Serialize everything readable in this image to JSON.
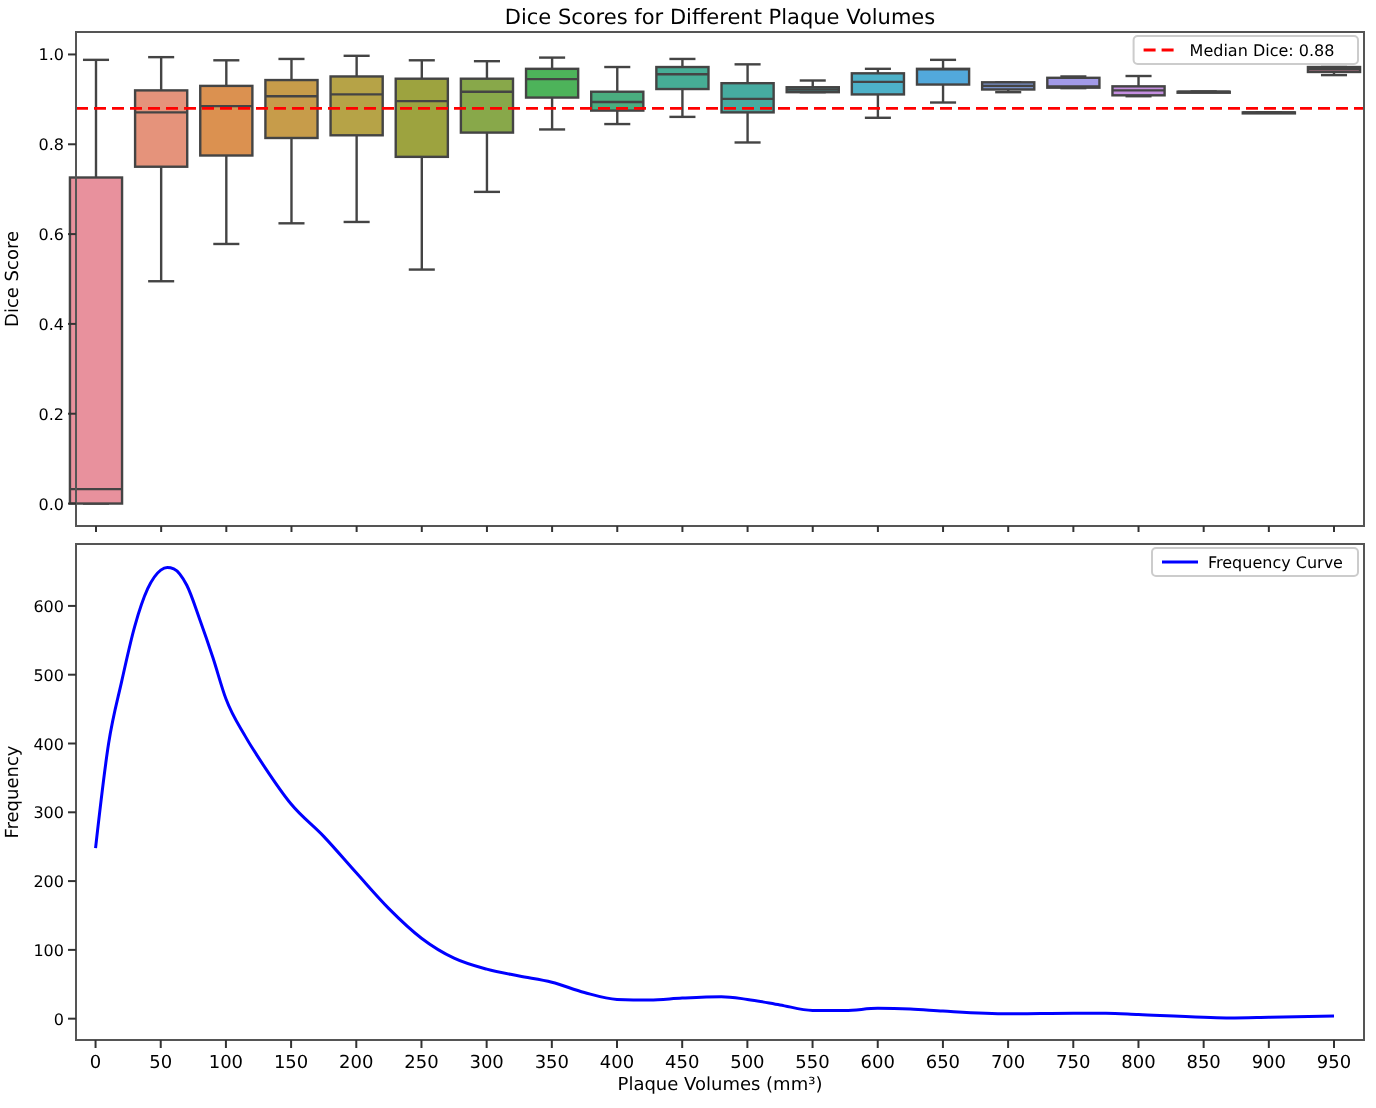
{
  "chart_data": [
    {
      "type": "box",
      "title": "Dice Scores for Different Plaque Volumes",
      "ylabel": "Dice Score",
      "categories": [
        "0",
        "50",
        "100",
        "150",
        "200",
        "250",
        "300",
        "350",
        "400",
        "450",
        "500",
        "550",
        "600",
        "650",
        "700",
        "750",
        "800",
        "850",
        "900",
        "950"
      ],
      "ylim": [
        -0.05,
        1.05
      ],
      "yticks": [
        {
          "value": 0,
          "label": "0.0"
        },
        {
          "value": 0.2,
          "label": "0.2"
        },
        {
          "value": 0.4,
          "label": "0.4"
        },
        {
          "value": 0.6,
          "label": "0.6"
        },
        {
          "value": 0.8,
          "label": "0.8"
        },
        {
          "value": 1,
          "label": "1.0"
        }
      ],
      "tick_labels": "y",
      "grid": false,
      "legend": "top right",
      "colors": [
        "#e8919d",
        "#e5937b",
        "#db9150",
        "#c79c4a",
        "#b6a347",
        "#9da33f",
        "#88a84a",
        "#4db35a",
        "#4aad7f",
        "#46ad95",
        "#46aba0",
        "#47a6a8",
        "#4db1c8",
        "#52a9dc",
        "#7890c8",
        "#a29ae8",
        "#c48ee0",
        "#d38bd0",
        "#e28fbd",
        "#e890aa"
      ],
      "boxes": [
        {
          "low": 0,
          "q1": 0,
          "median": 0.032,
          "q3": 0.726,
          "high": 0.988
        },
        {
          "low": 0.495,
          "q1": 0.75,
          "median": 0.871,
          "q3": 0.92,
          "high": 0.994
        },
        {
          "low": 0.578,
          "q1": 0.775,
          "median": 0.885,
          "q3": 0.93,
          "high": 0.987
        },
        {
          "low": 0.624,
          "q1": 0.814,
          "median": 0.907,
          "q3": 0.943,
          "high": 0.99
        },
        {
          "low": 0.627,
          "q1": 0.82,
          "median": 0.911,
          "q3": 0.951,
          "high": 0.997
        },
        {
          "low": 0.521,
          "q1": 0.772,
          "median": 0.896,
          "q3": 0.946,
          "high": 0.987
        },
        {
          "low": 0.694,
          "q1": 0.826,
          "median": 0.917,
          "q3": 0.946,
          "high": 0.985
        },
        {
          "low": 0.833,
          "q1": 0.904,
          "median": 0.945,
          "q3": 0.968,
          "high": 0.993
        },
        {
          "low": 0.845,
          "q1": 0.875,
          "median": 0.894,
          "q3": 0.917,
          "high": 0.972
        },
        {
          "low": 0.861,
          "q1": 0.923,
          "median": 0.956,
          "q3": 0.972,
          "high": 0.99
        },
        {
          "low": 0.804,
          "q1": 0.871,
          "median": 0.901,
          "q3": 0.936,
          "high": 0.978
        },
        {
          "low": 0.916,
          "q1": 0.916,
          "median": 0.922,
          "q3": 0.927,
          "high": 0.942
        },
        {
          "low": 0.859,
          "q1": 0.911,
          "median": 0.939,
          "q3": 0.958,
          "high": 0.968
        },
        {
          "low": 0.893,
          "q1": 0.933,
          "median": 0.967,
          "q3": 0.968,
          "high": 0.988
        },
        {
          "low": 0.916,
          "q1": 0.922,
          "median": 0.93,
          "q3": 0.938,
          "high": 0.938
        },
        {
          "low": 0.925,
          "q1": 0.926,
          "median": 0.929,
          "q3": 0.948,
          "high": 0.951
        },
        {
          "low": 0.907,
          "q1": 0.909,
          "median": 0.92,
          "q3": 0.929,
          "high": 0.952
        },
        {
          "low": 0.917,
          "q1": 0.917,
          "median": 0.917,
          "q3": 0.917,
          "high": 0.917
        },
        {
          "low": 0.871,
          "q1": 0.871,
          "median": 0.871,
          "q3": 0.871,
          "high": 0.871
        },
        {
          "low": 0.954,
          "q1": 0.961,
          "median": 0.967,
          "q3": 0.972,
          "high": 0.972
        }
      ],
      "ref_lines": [
        {
          "axis": "y",
          "value": 0.88,
          "label": "Median Dice: 0.88",
          "color": "#ff0000",
          "line_style": "dashed"
        }
      ]
    },
    {
      "type": "line",
      "xlabel": "Plaque Volumes (mm³)",
      "ylabel": "Frequency",
      "xlim": [
        -15,
        973
      ],
      "ylim": [
        -31,
        690
      ],
      "xticks": [
        0,
        50,
        100,
        150,
        200,
        250,
        300,
        350,
        400,
        450,
        500,
        550,
        600,
        650,
        700,
        750,
        800,
        850,
        900,
        950
      ],
      "yticks": [
        0,
        100,
        200,
        300,
        400,
        500,
        600
      ],
      "grid": false,
      "legend": "top right",
      "marker": "none",
      "line_style": "solid",
      "series": [
        {
          "name": "Frequency Curve",
          "color": "#0000ff",
          "x": [
            0,
            10,
            20,
            30,
            40,
            50,
            55,
            60,
            70,
            80,
            90,
            100,
            115,
            130,
            150,
            175,
            200,
            225,
            250,
            275,
            300,
            325,
            350,
            375,
            400,
            425,
            450,
            480,
            500,
            525,
            550,
            575,
            600,
            625,
            650,
            700,
            750,
            775,
            800,
            850,
            870,
            900,
            950
          ],
          "values": [
            248,
            400,
            490,
            570,
            625,
            652,
            656,
            654,
            630,
            580,
            525,
            465,
            410,
            365,
            312,
            265,
            212,
            160,
            117,
            88,
            72,
            62,
            53,
            38,
            28,
            27,
            30,
            32,
            28,
            20,
            12,
            12,
            15,
            14,
            11,
            7,
            8,
            8,
            6,
            2,
            1,
            2,
            4
          ]
        }
      ]
    }
  ]
}
